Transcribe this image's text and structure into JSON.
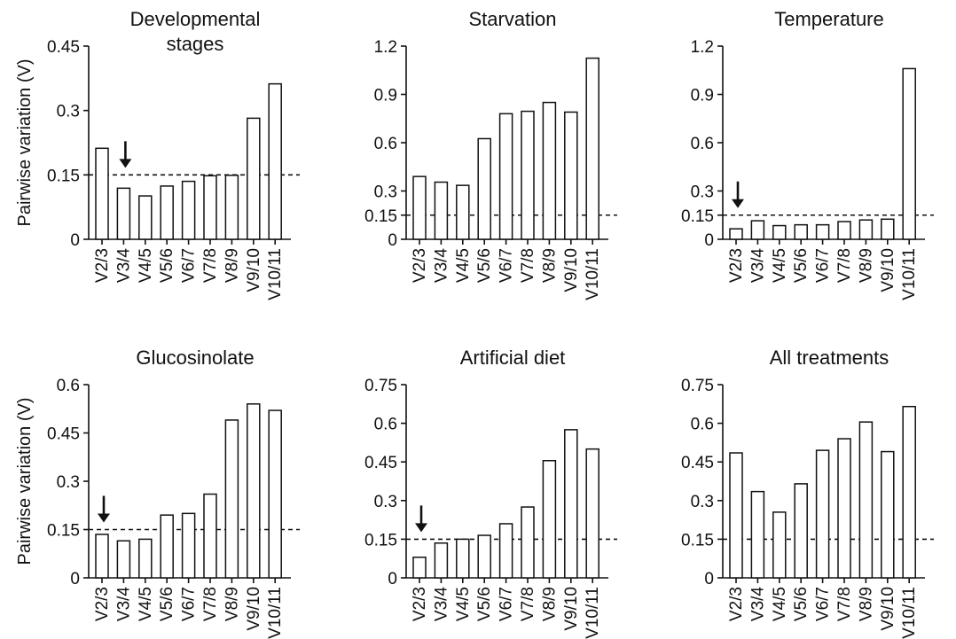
{
  "figure": {
    "ylabel_left": "Pairwise variation (V)",
    "threshold": 0.15,
    "bar_fill": "#ffffff",
    "stroke_color": "#111111"
  },
  "chart_data": [
    {
      "type": "bar",
      "title": "Developmental stages",
      "title_lines": [
        "Developmental",
        "stages"
      ],
      "ylabel": "Pairwise variation (V)",
      "categories": [
        "V2/3",
        "V3/4",
        "V4/5",
        "V5/6",
        "V6/7",
        "V7/8",
        "V8/9",
        "V9/10",
        "V10/11"
      ],
      "values": [
        0.212,
        0.119,
        0.101,
        0.124,
        0.135,
        0.148,
        0.149,
        0.282,
        0.362
      ],
      "ylim": [
        0,
        0.45
      ],
      "yticks": [
        "0",
        "0.15",
        "0.3",
        "0.45"
      ],
      "ytick_values": [
        0,
        0.15,
        0.3,
        0.45
      ],
      "reference_line": 0.15,
      "arrow_at": "V3/4"
    },
    {
      "type": "bar",
      "title": "Starvation",
      "title_lines": [
        "Starvation"
      ],
      "ylabel": "",
      "categories": [
        "V2/3",
        "V3/4",
        "V4/5",
        "V5/6",
        "V6/7",
        "V7/8",
        "V8/9",
        "V9/10",
        "V10/11"
      ],
      "values": [
        0.39,
        0.355,
        0.335,
        0.625,
        0.78,
        0.795,
        0.85,
        0.79,
        1.125
      ],
      "ylim": [
        0,
        1.2
      ],
      "yticks": [
        "0",
        "0.15",
        "0.3",
        "0.6",
        "0.9",
        "1.2"
      ],
      "ytick_values": [
        0,
        0.15,
        0.3,
        0.6,
        0.9,
        1.2
      ],
      "reference_line": 0.15,
      "arrow_at": ""
    },
    {
      "type": "bar",
      "title": "Temperature",
      "title_lines": [
        "Temperature"
      ],
      "ylabel": "",
      "categories": [
        "V2/3",
        "V3/4",
        "V4/5",
        "V5/6",
        "V6/7",
        "V7/8",
        "V8/9",
        "V9/10",
        "V10/11"
      ],
      "values": [
        0.065,
        0.115,
        0.085,
        0.09,
        0.09,
        0.11,
        0.12,
        0.125,
        1.06
      ],
      "ylim": [
        0,
        1.2
      ],
      "yticks": [
        "0",
        "0.15",
        "0.3",
        "0.6",
        "0.9",
        "1.2"
      ],
      "ytick_values": [
        0,
        0.15,
        0.3,
        0.6,
        0.9,
        1.2
      ],
      "reference_line": 0.15,
      "arrow_at": "V2/3"
    },
    {
      "type": "bar",
      "title": "Glucosinolate",
      "title_lines": [
        "Glucosinolate"
      ],
      "ylabel": "Pairwise variation (V)",
      "categories": [
        "V2/3",
        "V3/4",
        "V4/5",
        "V5/6",
        "V6/7",
        "V7/8",
        "V8/9",
        "V9/10",
        "V10/11"
      ],
      "values": [
        0.135,
        0.115,
        0.12,
        0.195,
        0.2,
        0.26,
        0.49,
        0.54,
        0.52
      ],
      "ylim": [
        0,
        0.6
      ],
      "yticks": [
        "0",
        "0.15",
        "0.3",
        "0.45",
        "0.6"
      ],
      "ytick_values": [
        0,
        0.15,
        0.3,
        0.45,
        0.6
      ],
      "reference_line": 0.15,
      "arrow_at": "V2/3"
    },
    {
      "type": "bar",
      "title": "Artificial diet",
      "title_lines": [
        "Artificial diet"
      ],
      "ylabel": "",
      "categories": [
        "V2/3",
        "V3/4",
        "V4/5",
        "V5/6",
        "V6/7",
        "V7/8",
        "V8/9",
        "V9/10",
        "V10/11"
      ],
      "values": [
        0.08,
        0.135,
        0.15,
        0.165,
        0.21,
        0.275,
        0.455,
        0.575,
        0.5
      ],
      "ylim": [
        0,
        0.75
      ],
      "yticks": [
        "0",
        "0.15",
        "0.3",
        "0.45",
        "0.6",
        "0.75"
      ],
      "ytick_values": [
        0,
        0.15,
        0.3,
        0.45,
        0.6,
        0.75
      ],
      "reference_line": 0.15,
      "arrow_at": "V2/3"
    },
    {
      "type": "bar",
      "title": "All treatments",
      "title_lines": [
        "All treatments"
      ],
      "ylabel": "",
      "categories": [
        "V2/3",
        "V3/4",
        "V4/5",
        "V5/6",
        "V6/7",
        "V7/8",
        "V8/9",
        "V9/10",
        "V10/11"
      ],
      "values": [
        0.485,
        0.335,
        0.255,
        0.365,
        0.495,
        0.54,
        0.605,
        0.49,
        0.665
      ],
      "ylim": [
        0,
        0.75
      ],
      "yticks": [
        "0",
        "0.15",
        "0.3",
        "0.45",
        "0.6",
        "0.75"
      ],
      "ytick_values": [
        0,
        0.15,
        0.3,
        0.45,
        0.6,
        0.75
      ],
      "reference_line": 0.15,
      "arrow_at": ""
    }
  ]
}
